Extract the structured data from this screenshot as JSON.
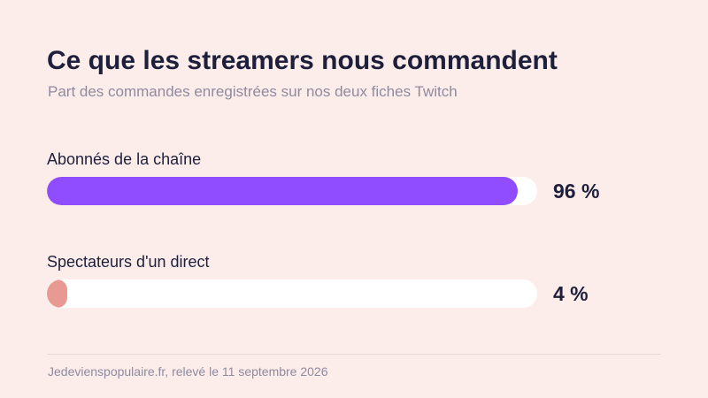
{
  "chart_data": {
    "type": "bar",
    "orientation": "horizontal",
    "title": "Ce que les streamers nous commandent",
    "subtitle": "Part des commandes enregistrées sur nos deux fiches Twitch",
    "categories": [
      "Abonnés de la chaîne",
      "Spectateurs d'un direct"
    ],
    "values": [
      96,
      4
    ],
    "value_labels": [
      "96 %",
      "4 %"
    ],
    "colors": [
      "#904cff",
      "#e89a92"
    ],
    "track_color": "#ffffff",
    "xlim": [
      0,
      100
    ],
    "grid": false,
    "legend": "none"
  },
  "footer": {
    "source": "Jedeviens­populaire.fr, relevé le 11 septembre 2026"
  }
}
